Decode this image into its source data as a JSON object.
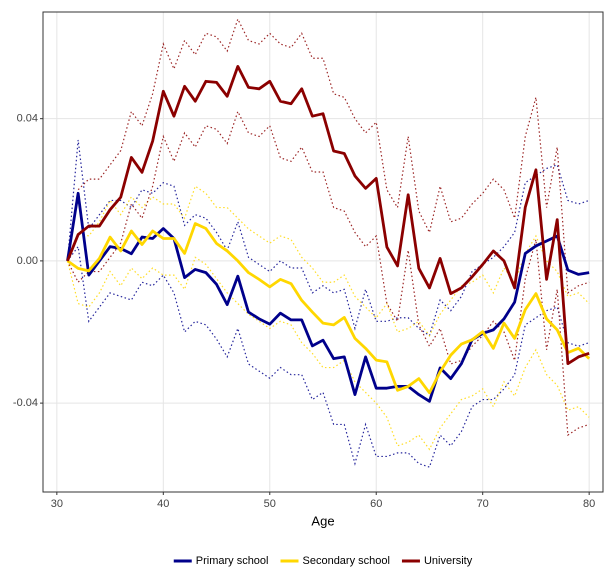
{
  "chart_data": {
    "type": "line",
    "x_label": "Age",
    "x": [
      31,
      32,
      33,
      34,
      35,
      36,
      37,
      38,
      39,
      40,
      41,
      42,
      43,
      44,
      45,
      46,
      47,
      48,
      49,
      50,
      51,
      52,
      53,
      54,
      55,
      56,
      57,
      58,
      59,
      60,
      61,
      62,
      63,
      64,
      65,
      66,
      67,
      68,
      69,
      70,
      71,
      72,
      73,
      74,
      75,
      76,
      77,
      78,
      79,
      80
    ],
    "xlim": [
      28.7,
      81.3
    ],
    "xticks": [
      30,
      40,
      50,
      60,
      70,
      80
    ],
    "ylim": [
      -0.065,
      0.07
    ],
    "yticks": [
      {
        "value": -0.04,
        "label": "-0.04"
      },
      {
        "value": 0,
        "label": "0.00"
      },
      {
        "value": 0.04,
        "label": "0.04"
      }
    ],
    "grid": true,
    "legend": "bottom",
    "series": [
      {
        "name": "Primary school",
        "color": "#00008b",
        "values": [
          0,
          0.019,
          -0.004,
          0,
          0.004,
          0.0035,
          0.002,
          0.0067,
          0.0063,
          0.0091,
          0.0063,
          -0.0047,
          -0.0024,
          -0.0033,
          -0.0066,
          -0.0123,
          -0.0043,
          -0.0144,
          -0.0163,
          -0.0178,
          -0.0147,
          -0.0166,
          -0.0166,
          -0.0239,
          -0.0223,
          -0.0275,
          -0.027,
          -0.0376,
          -0.027,
          -0.0358,
          -0.0358,
          -0.0353,
          -0.0353,
          -0.0376,
          -0.0395,
          -0.0301,
          -0.0331,
          -0.0289,
          -0.0222,
          -0.0204,
          -0.0194,
          -0.0163,
          -0.0116,
          0.0021,
          0.0042,
          0.0056,
          0.007,
          -0.0026,
          -0.0038,
          -0.0033
        ],
        "upper": [
          0,
          0.034,
          0.009,
          0.013,
          0.017,
          0.017,
          0.015,
          0.02,
          0.019,
          0.022,
          0.021,
          0.01,
          0.013,
          0.012,
          0.008,
          0.003,
          0.011,
          0.001,
          -0.001,
          -0.003,
          0,
          -0.002,
          -0.002,
          -0.009,
          -0.007,
          -0.009,
          -0.008,
          -0.019,
          -0.008,
          -0.017,
          -0.017,
          -0.016,
          -0.016,
          -0.019,
          -0.021,
          -0.011,
          -0.014,
          -0.01,
          -0.003,
          -0.001,
          0.001,
          0.004,
          0.008,
          0.022,
          0.024,
          0.026,
          0.027,
          0.017,
          0.016,
          0.017
        ],
        "lower": [
          0,
          0.004,
          -0.017,
          -0.013,
          -0.009,
          -0.01,
          -0.011,
          -0.006,
          -0.007,
          -0.004,
          -0.009,
          -0.02,
          -0.017,
          -0.018,
          -0.022,
          -0.027,
          -0.019,
          -0.029,
          -0.031,
          -0.033,
          -0.03,
          -0.032,
          -0.032,
          -0.039,
          -0.037,
          -0.046,
          -0.046,
          -0.057,
          -0.046,
          -0.055,
          -0.055,
          -0.054,
          -0.054,
          -0.057,
          -0.058,
          -0.049,
          -0.052,
          -0.048,
          -0.041,
          -0.039,
          -0.039,
          -0.036,
          -0.032,
          -0.018,
          -0.016,
          -0.014,
          -0.013,
          -0.023,
          -0.024,
          -0.023
        ]
      },
      {
        "name": "Secondary school",
        "color": "#ffd700",
        "values": [
          0,
          -0.0021,
          -0.0028,
          0.0007,
          0.0067,
          0.0028,
          0.0084,
          0.0046,
          0.0084,
          0.0063,
          0.0063,
          0.0021,
          0.0105,
          0.0091,
          0.0049,
          0.0028,
          0,
          -0.0033,
          -0.0052,
          -0.0073,
          -0.0052,
          -0.0064,
          -0.0111,
          -0.0144,
          -0.0175,
          -0.018,
          -0.0159,
          -0.0218,
          -0.0246,
          -0.0279,
          -0.0284,
          -0.0364,
          -0.0353,
          -0.0331,
          -0.0371,
          -0.0312,
          -0.0265,
          -0.0234,
          -0.0222,
          -0.0199,
          -0.0246,
          -0.0175,
          -0.0218,
          -0.0137,
          -0.0092,
          -0.0163,
          -0.0194,
          -0.0258,
          -0.0246,
          -0.0275
        ],
        "upper": [
          0,
          0.008,
          0.007,
          0.011,
          0.017,
          0.013,
          0.018,
          0.015,
          0.018,
          0.016,
          0.016,
          0.012,
          0.021,
          0.019,
          0.015,
          0.015,
          0.012,
          0.009,
          0.007,
          0.005,
          0.007,
          0.006,
          0.001,
          -0.002,
          -0.006,
          -0.006,
          -0.004,
          -0.01,
          -0.013,
          -0.016,
          -0.012,
          -0.02,
          -0.019,
          -0.017,
          -0.021,
          -0.015,
          -0.011,
          -0.007,
          -0.006,
          -0.004,
          -0.009,
          -0.002,
          -0.006,
          0.002,
          0.007,
          0,
          -0.003,
          -0.01,
          -0.009,
          -0.012
        ],
        "lower": [
          0,
          -0.012,
          -0.013,
          -0.009,
          -0.003,
          -0.007,
          -0.002,
          -0.005,
          -0.002,
          -0.004,
          -0.004,
          -0.008,
          0.001,
          -0.001,
          -0.005,
          -0.009,
          -0.012,
          -0.015,
          -0.017,
          -0.019,
          -0.017,
          -0.018,
          -0.023,
          -0.026,
          -0.03,
          -0.03,
          -0.028,
          -0.034,
          -0.037,
          -0.04,
          -0.044,
          -0.052,
          -0.051,
          -0.049,
          -0.053,
          -0.047,
          -0.043,
          -0.039,
          -0.038,
          -0.036,
          -0.041,
          -0.034,
          -0.038,
          -0.03,
          -0.025,
          -0.032,
          -0.035,
          -0.042,
          -0.041,
          -0.044
        ]
      },
      {
        "name": "University",
        "color": "#8b0000",
        "values": [
          0,
          0.0074,
          0.0098,
          0.0098,
          0.0144,
          0.0179,
          0.0291,
          0.0249,
          0.0337,
          0.0477,
          0.0407,
          0.0491,
          0.0449,
          0.0505,
          0.0502,
          0.0463,
          0.0547,
          0.0488,
          0.0484,
          0.0505,
          0.0449,
          0.0442,
          0.0484,
          0.0407,
          0.0414,
          0.0309,
          0.0302,
          0.0239,
          0.0204,
          0.0232,
          0.0039,
          -0.0014,
          0.0186,
          -0.0021,
          -0.0076,
          0.0007,
          -0.0092,
          -0.0076,
          -0.0045,
          -0.001,
          0.0028,
          0,
          -0.0076,
          0.0151,
          0.0256,
          -0.0052,
          0.0116,
          -0.0289,
          -0.027,
          -0.026
        ],
        "upper": [
          0,
          0.02,
          0.023,
          0.023,
          0.027,
          0.031,
          0.042,
          0.038,
          0.047,
          0.061,
          0.054,
          0.062,
          0.058,
          0.064,
          0.063,
          0.059,
          0.068,
          0.062,
          0.061,
          0.064,
          0.061,
          0.06,
          0.064,
          0.057,
          0.057,
          0.047,
          0.046,
          0.04,
          0.036,
          0.039,
          0.02,
          0.015,
          0.035,
          0.014,
          0.008,
          0.021,
          0.011,
          0.012,
          0.016,
          0.019,
          0.023,
          0.02,
          0.012,
          0.035,
          0.046,
          0.015,
          0.032,
          -0.009,
          -0.007,
          -0.006
        ],
        "lower": [
          0,
          -0.006,
          -0.003,
          -0.003,
          0.001,
          0.005,
          0.016,
          0.012,
          0.021,
          0.035,
          0.028,
          0.036,
          0.032,
          0.038,
          0.037,
          0.033,
          0.042,
          0.036,
          0.035,
          0.038,
          0.029,
          0.028,
          0.032,
          0.025,
          0.025,
          0.015,
          0.014,
          0.008,
          0.004,
          0.007,
          -0.012,
          -0.017,
          0.003,
          -0.018,
          -0.024,
          -0.019,
          -0.029,
          -0.028,
          -0.024,
          -0.021,
          -0.017,
          -0.02,
          -0.028,
          -0.005,
          0.006,
          -0.025,
          -0.008,
          -0.049,
          -0.047,
          -0.046
        ]
      }
    ]
  }
}
